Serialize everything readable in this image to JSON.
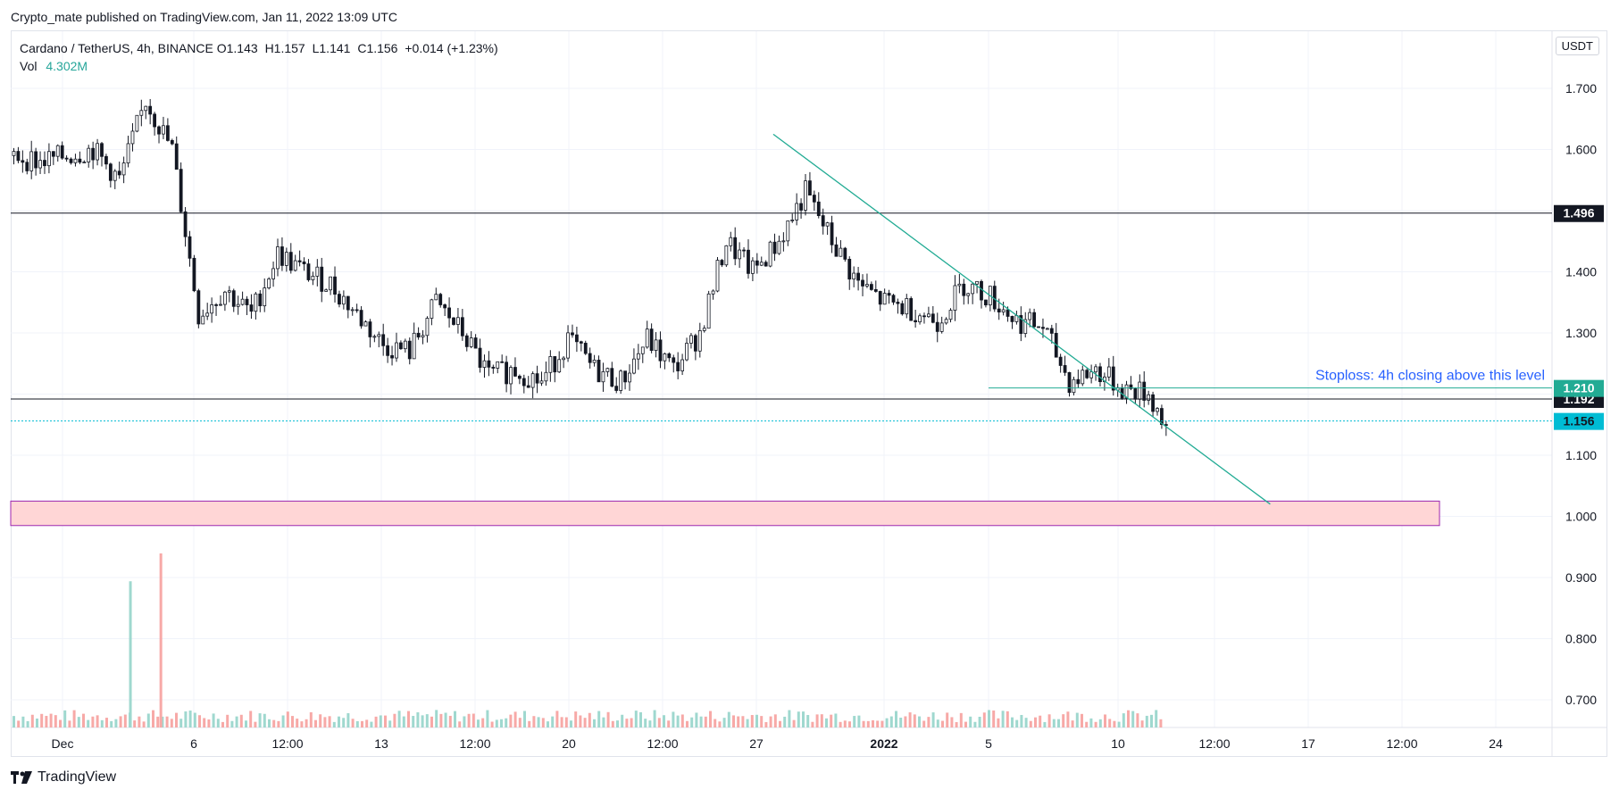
{
  "attribution": "Crypto_mate published on TradingView.com, Jan 11, 2022 13:09 UTC",
  "header": {
    "symbol": "Cardano / TetherUS, 4h, BINANCE",
    "open": "O1.143",
    "high": "H1.157",
    "low": "L1.141",
    "close": "C1.156",
    "change": "+0.014 (+1.23%)",
    "vol_label": "Vol",
    "vol_value": "4.302M"
  },
  "unit_badge": "USDT",
  "footer": {
    "brand": "TradingView"
  },
  "colors": {
    "up": "#26a69a",
    "down": "#ef5350",
    "trendline": "#22ab94",
    "zone_fill": "#ffd6d6",
    "zone_border": "#9c27b0",
    "level_line": "#131722",
    "last_price": "#00bcd4",
    "stoploss_tag": "#22ab94",
    "annotation": "#2962ff"
  },
  "chart_data": {
    "type": "candlestick",
    "y_axis": {
      "range": [
        0.655,
        1.79
      ],
      "ticks": [
        "0.700",
        "0.800",
        "0.900",
        "1.000",
        "1.100",
        "1.200",
        "1.300",
        "1.400",
        "1.500",
        "1.600",
        "1.700"
      ]
    },
    "x_axis": {
      "ticks": [
        "Dec",
        "6",
        "12:00",
        "13",
        "12:00",
        "20",
        "12:00",
        "27",
        "2022",
        "5",
        "10",
        "12:00",
        "17",
        "12:00",
        "24"
      ]
    },
    "levels": [
      {
        "price": 1.496,
        "label": "1.496"
      },
      {
        "price": 1.192,
        "label": "1.192"
      }
    ],
    "stoploss": {
      "price": 1.21,
      "label": "1.210",
      "text": "Stoploss: 4h closing above this level"
    },
    "last_price": {
      "price": 1.156,
      "label": "1.156"
    },
    "support_zone": {
      "low": 0.985,
      "high": 1.025
    },
    "trendline": {
      "from": {
        "date": "Dec 26",
        "price": 1.625
      },
      "to": {
        "date": "Jan 14",
        "price": 1.02
      }
    },
    "price_path": [
      [
        "Nov 27",
        1.59
      ],
      [
        "Nov 28",
        1.58
      ],
      [
        "Nov 29",
        1.59
      ],
      [
        "Nov 30",
        1.6
      ],
      [
        "Dec 1",
        1.55
      ],
      [
        "Dec 2",
        1.68
      ],
      [
        "Dec 3",
        1.6
      ],
      [
        "Dec 4",
        1.33
      ],
      [
        "Dec 5",
        1.37
      ],
      [
        "Dec 6",
        1.33
      ],
      [
        "Dec 7",
        1.43
      ],
      [
        "Dec 8",
        1.4
      ],
      [
        "Dec 9",
        1.38
      ],
      [
        "Dec 10",
        1.33
      ],
      [
        "Dec 11",
        1.28
      ],
      [
        "Dec 12",
        1.27
      ],
      [
        "Dec 13",
        1.35
      ],
      [
        "Dec 14",
        1.3
      ],
      [
        "Dec 15",
        1.23
      ],
      [
        "Dec 16",
        1.24
      ],
      [
        "Dec 17",
        1.22
      ],
      [
        "Dec 18",
        1.29
      ],
      [
        "Dec 19",
        1.24
      ],
      [
        "Dec 20",
        1.22
      ],
      [
        "Dec 21",
        1.29
      ],
      [
        "Dec 22",
        1.24
      ],
      [
        "Dec 23",
        1.3
      ],
      [
        "Dec 24",
        1.45
      ],
      [
        "Dec 25",
        1.4
      ],
      [
        "Dec 26",
        1.45
      ],
      [
        "Dec 27",
        1.53
      ],
      [
        "Dec 28",
        1.45
      ],
      [
        "Dec 29",
        1.38
      ],
      [
        "Dec 30",
        1.35
      ],
      [
        "Dec 31",
        1.34
      ],
      [
        "Jan 1",
        1.32
      ],
      [
        "Jan 2",
        1.38
      ],
      [
        "Jan 3",
        1.36
      ],
      [
        "Jan 4",
        1.32
      ],
      [
        "Jan 5",
        1.31
      ],
      [
        "Jan 6",
        1.22
      ],
      [
        "Jan 7",
        1.24
      ],
      [
        "Jan 8",
        1.21
      ],
      [
        "Jan 9",
        1.2
      ],
      [
        "Jan 10",
        1.12
      ],
      [
        "Jan 11",
        1.156
      ]
    ],
    "volume_spikes": [
      [
        "Dec 2",
        0.84
      ],
      [
        "Dec 4",
        1.0
      ]
    ]
  }
}
